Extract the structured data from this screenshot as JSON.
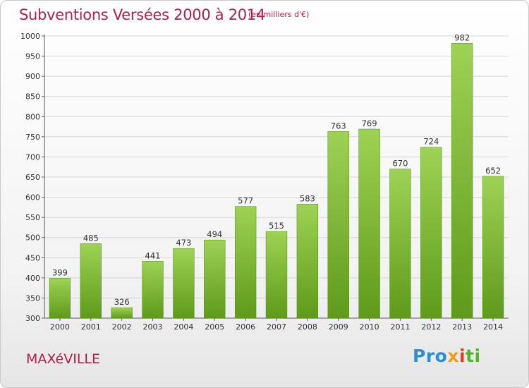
{
  "header": {
    "title": "Subventions Versées 2000 à 2014",
    "subtitle": "(en milliers d'€)"
  },
  "footer": {
    "town": "MAXéVILLE",
    "logo": [
      "Pro",
      "x",
      "i",
      "ti"
    ]
  },
  "colors": {
    "accent": "#b2204a",
    "bar_top": "#9ed255",
    "bar_bottom": "#5f9a1a",
    "grid": "#d6d6d6"
  },
  "chart_data": {
    "type": "bar",
    "title": "Subventions Versées 2000 à 2014",
    "subtitle": "(en milliers d'€)",
    "categories": [
      "2000",
      "2001",
      "2002",
      "2003",
      "2004",
      "2005",
      "2006",
      "2007",
      "2008",
      "2009",
      "2010",
      "2011",
      "2012",
      "2013",
      "2014"
    ],
    "values": [
      399,
      485,
      326,
      441,
      473,
      494,
      577,
      515,
      583,
      763,
      769,
      670,
      724,
      982,
      652
    ],
    "yticks": [
      300,
      350,
      400,
      450,
      500,
      550,
      600,
      650,
      700,
      750,
      800,
      850,
      900,
      950,
      1000
    ],
    "ylim": [
      300,
      1000
    ],
    "grid": true
  }
}
